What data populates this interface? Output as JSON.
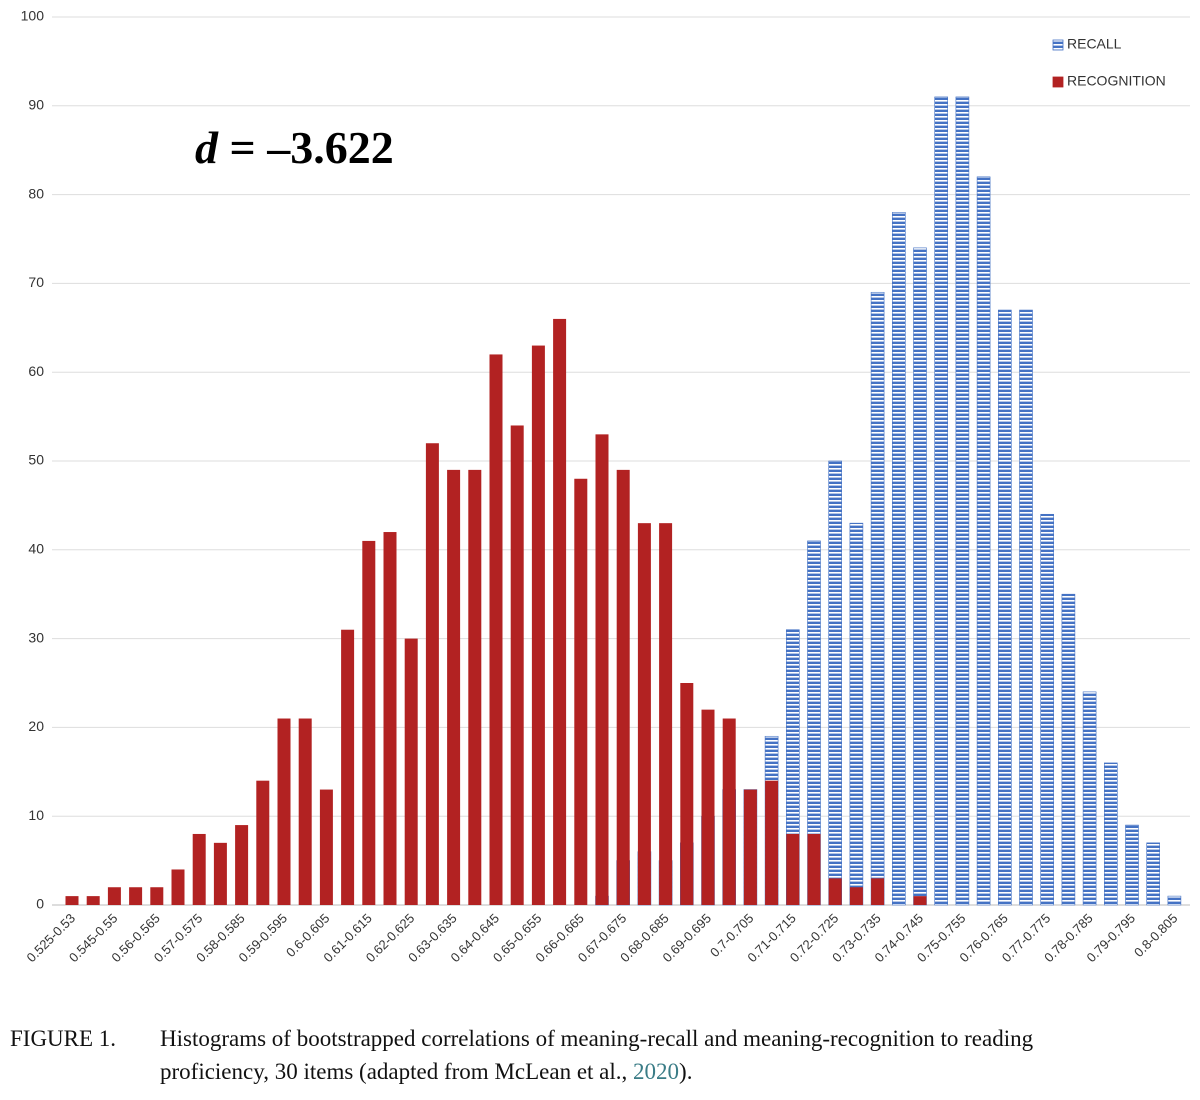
{
  "chart_data": {
    "type": "bar",
    "annotation": {
      "variable": "d",
      "text": " = –3.622"
    },
    "categories": [
      "0.525-0.53",
      null,
      "0.545-0.55",
      null,
      "0.56-0.565",
      null,
      "0.57-0.575",
      null,
      "0.58-0.585",
      null,
      "0.59-0.595",
      null,
      "0.6-0.605",
      null,
      "0.61-0.615",
      null,
      "0.62-0.625",
      null,
      "0.63-0.635",
      null,
      "0.64-0.645",
      null,
      "0.65-0.655",
      null,
      "0.66-0.665",
      null,
      "0.67-0.675",
      null,
      "0.68-0.685",
      null,
      "0.69-0.695",
      null,
      "0.7-0.705",
      null,
      "0.71-0.715",
      null,
      "0.72-0.725",
      null,
      "0.73-0.735",
      null,
      "0.74-0.745",
      null,
      "0.75-0.755",
      null,
      "0.76-0.765",
      null,
      "0.77-0.775",
      null,
      "0.78-0.785",
      null,
      "0.79-0.795",
      null,
      "0.8-0.805"
    ],
    "series": [
      {
        "name": "RECALL",
        "color": "#4472c4",
        "pattern": "striped",
        "values": [
          0,
          0,
          0,
          0,
          0,
          0,
          0,
          0,
          0,
          0,
          0,
          0,
          0,
          0,
          0,
          0,
          0,
          0,
          0,
          0,
          0,
          0,
          0,
          0,
          0,
          1,
          5,
          6,
          5,
          7,
          10,
          13,
          13,
          19,
          31,
          41,
          50,
          43,
          69,
          78,
          74,
          91,
          91,
          82,
          67,
          67,
          44,
          35,
          24,
          16,
          9,
          7,
          1
        ]
      },
      {
        "name": "RECOGNITION",
        "color": "#b22222",
        "values": [
          1,
          1,
          2,
          2,
          2,
          4,
          8,
          7,
          9,
          14,
          21,
          21,
          13,
          31,
          41,
          42,
          30,
          52,
          49,
          49,
          62,
          54,
          63,
          66,
          48,
          53,
          49,
          43,
          43,
          25,
          22,
          21,
          13,
          14,
          8,
          8,
          3,
          2,
          3,
          0,
          1,
          0,
          0,
          0,
          0,
          0,
          0,
          0,
          0,
          0,
          0,
          0,
          0
        ]
      }
    ],
    "ylim": [
      0,
      100
    ],
    "yticks": [
      0,
      10,
      20,
      30,
      40,
      50,
      60,
      70,
      80,
      90,
      100
    ],
    "grid": true,
    "legend": "upper right"
  },
  "caption": {
    "label": "FIGURE 1.",
    "line1": "Histograms of bootstrapped correlations of meaning-recall and meaning-recognition to reading",
    "line2_start": "proficiency, 30 items (adapted from McLean et al., ",
    "year": "2020",
    "line2_end": ")."
  }
}
